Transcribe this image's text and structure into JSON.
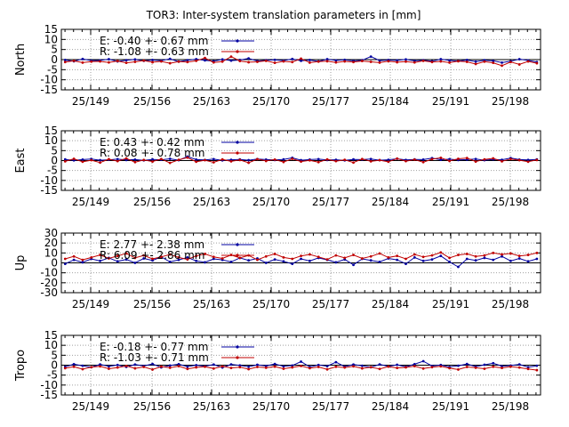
{
  "title": "TOR3: Inter-system translation parameters in [mm]",
  "colors": {
    "E": "#0000a0",
    "R": "#c00000",
    "grid": "#a0a0a0",
    "axis": "#000000"
  },
  "chart_data": [
    {
      "type": "line",
      "ylabel": "North",
      "ylim": [
        -15,
        15
      ],
      "yticks": [
        15,
        10,
        5,
        0,
        -5,
        -10,
        -15
      ],
      "xticks": [
        "25/149",
        "25/156",
        "25/163",
        "25/170",
        "25/177",
        "25/184",
        "25/191",
        "25/198"
      ],
      "series": [
        {
          "name": "E",
          "stat": "E:  -0.40 +- 0.67 mm",
          "values": [
            -0.5,
            -0.2,
            -0.8,
            0.3,
            -0.5,
            -0.4,
            0.2,
            -0.9,
            -0.3,
            0.1,
            -0.6,
            -0.2,
            -0.5,
            0.4,
            -1.0,
            -0.3,
            0.2,
            -0.4,
            -0.8,
            0.1,
            -0.5,
            -0.2,
            0.6,
            -0.7,
            -0.3,
            -0.1,
            -0.5,
            0.3,
            -0.6,
            -0.2,
            -0.9,
            0.2,
            -0.4,
            -0.1,
            -0.6,
            -0.3,
            1.5,
            -0.5,
            -0.2,
            -0.4,
            0.1,
            -0.6,
            -0.3,
            -0.8,
            0.2,
            -0.4,
            -0.7,
            -0.2,
            -1.0,
            -0.3,
            -0.6,
            -1.5,
            -0.8,
            0.2,
            -0.4,
            -1.2
          ]
        },
        {
          "name": "R",
          "stat": "R:  -1.08 +- 0.63 mm",
          "values": [
            -0.8,
            -1.2,
            -0.6,
            -1.5,
            -1.0,
            -0.9,
            -1.4,
            -0.7,
            -1.6,
            -1.1,
            -0.5,
            -1.3,
            -0.9,
            -1.8,
            -1.0,
            -1.2,
            -0.6,
            0.8,
            -1.4,
            -1.0,
            1.5,
            -0.7,
            -1.3,
            -1.1,
            -0.6,
            -1.6,
            -0.9,
            -1.2,
            0.5,
            -1.5,
            -1.0,
            -0.8,
            -1.4,
            -0.9,
            -1.2,
            -0.7,
            -1.1,
            -1.5,
            -0.8,
            -1.3,
            -1.0,
            -1.4,
            -0.6,
            -1.2,
            -0.9,
            -1.5,
            -0.8,
            -1.1,
            -2.2,
            -1.0,
            -1.6,
            -3.0,
            -1.2,
            -2.4,
            -0.9,
            -1.8
          ]
        }
      ]
    },
    {
      "type": "line",
      "ylabel": "East",
      "ylim": [
        -15,
        15
      ],
      "yticks": [
        15,
        10,
        5,
        0,
        -5,
        -10,
        -15
      ],
      "xticks": [
        "25/149",
        "25/156",
        "25/163",
        "25/170",
        "25/177",
        "25/184",
        "25/191",
        "25/198"
      ],
      "series": [
        {
          "name": "E",
          "stat": "E:   0.43 +- 0.42 mm",
          "values": [
            0.3,
            0.6,
            0.1,
            0.5,
            0.8,
            0.2,
            0.4,
            0.7,
            0.3,
            0.5,
            0.1,
            0.6,
            0.4,
            0.9,
            0.2,
            2.0,
            0.5,
            0.3,
            0.7,
            0.1,
            0.4,
            0.6,
            0.2,
            0.8,
            0.5,
            0.3,
            0.6,
            1.4,
            0.2,
            0.5,
            0.7,
            0.3,
            0.4,
            0.1,
            0.6,
            0.5,
            0.8,
            0.2,
            0.4,
            0.9,
            0.3,
            0.6,
            0.5,
            1.2,
            0.4,
            0.7,
            0.3,
            0.5,
            0.8,
            0.2,
            0.6,
            0.4,
            1.3,
            0.5,
            0.3,
            0.6
          ]
        },
        {
          "name": "R",
          "stat": "R:   0.08 +- 0.78 mm",
          "values": [
            0.5,
            -0.4,
            0.9,
            -0.6,
            0.2,
            -1.0,
            0.7,
            -0.3,
            1.1,
            -0.8,
            0.3,
            -0.5,
            0.8,
            -1.2,
            0.4,
            1.5,
            -0.6,
            0.2,
            -0.9,
            0.6,
            -0.4,
            0.3,
            -1.1,
            0.7,
            -0.2,
            0.5,
            -0.7,
            0.9,
            -0.5,
            0.1,
            -0.8,
            0.6,
            -0.3,
            0.4,
            -1.0,
            0.8,
            -0.4,
            0.2,
            -0.6,
            1.0,
            -0.3,
            0.5,
            -0.8,
            0.7,
            1.4,
            -0.2,
            0.9,
            1.3,
            -0.5,
            0.6,
            1.1,
            -0.4,
            0.8,
            0.2,
            -0.6,
            0.3
          ]
        }
      ]
    },
    {
      "type": "line",
      "ylabel": "Up",
      "ylim": [
        -30,
        30
      ],
      "yticks": [
        30,
        20,
        10,
        0,
        -10,
        -20,
        -30
      ],
      "xticks": [
        "25/149",
        "25/156",
        "25/163",
        "25/170",
        "25/177",
        "25/184",
        "25/191",
        "25/198"
      ],
      "series": [
        {
          "name": "E",
          "stat": "E:   2.77 +- 2.38 mm",
          "values": [
            1.0,
            -1.0,
            3.0,
            0.5,
            4.0,
            2.0,
            5.0,
            1.5,
            3.5,
            0.0,
            4.5,
            2.5,
            6.0,
            1.0,
            3.0,
            5.5,
            2.0,
            0.5,
            4.0,
            3.0,
            1.0,
            5.0,
            2.5,
            4.5,
            0.0,
            3.5,
            1.5,
            -1.0,
            4.0,
            2.0,
            5.0,
            3.0,
            0.5,
            3.5,
            -2.0,
            4.0,
            2.5,
            1.0,
            4.5,
            3.0,
            -1.0,
            5.5,
            2.0,
            3.5,
            7.0,
            1.0,
            -4.0,
            4.0,
            2.5,
            5.0,
            3.0,
            6.5,
            2.0,
            4.5,
            1.5,
            4.0
          ]
        },
        {
          "name": "R",
          "stat": "R:   6.09 +- 2.86 mm",
          "values": [
            2.5,
            4.0,
            6.5,
            3.0,
            5.5,
            8.0,
            4.5,
            7.0,
            9.5,
            5.0,
            7.5,
            4.0,
            6.0,
            8.5,
            5.5,
            3.5,
            7.0,
            9.0,
            6.0,
            4.5,
            8.0,
            5.0,
            7.5,
            3.0,
            6.5,
            9.0,
            5.5,
            4.0,
            7.0,
            8.5,
            6.0,
            3.5,
            7.5,
            5.0,
            8.0,
            4.5,
            6.5,
            9.5,
            5.5,
            7.0,
            4.0,
            8.5,
            6.0,
            7.5,
            10.5,
            5.0,
            8.0,
            9.0,
            6.5,
            7.5,
            10.0,
            8.5,
            9.5,
            7.0,
            8.0,
            10.0
          ]
        }
      ]
    },
    {
      "type": "line",
      "ylabel": "Tropo",
      "ylim": [
        -15,
        15
      ],
      "yticks": [
        15,
        10,
        5,
        0,
        -5,
        -10,
        -15
      ],
      "xticks": [
        "25/149",
        "25/156",
        "25/163",
        "25/170",
        "25/177",
        "25/184",
        "25/191",
        "25/198"
      ],
      "series": [
        {
          "name": "E",
          "stat": "E:  -0.18 +- 0.77 mm",
          "values": [
            0.2,
            -0.8,
            0.5,
            -0.3,
            -1.0,
            0.4,
            -0.6,
            0.1,
            -0.9,
            0.3,
            -0.4,
            0.6,
            -1.1,
            -0.2,
            0.5,
            -0.7,
            0.0,
            -0.5,
            0.3,
            -1.2,
            0.4,
            -0.1,
            -0.8,
            0.2,
            -0.4,
            0.6,
            -0.6,
            -0.2,
            1.8,
            -0.9,
            0.1,
            -0.5,
            1.5,
            -0.7,
            0.3,
            -0.3,
            -1.0,
            0.4,
            -0.6,
            0.2,
            -0.8,
            0.5,
            2.0,
            -0.4,
            0.1,
            -0.9,
            -0.3,
            0.6,
            -0.7,
            0.2,
            1.0,
            -0.5,
            -0.2,
            0.4,
            -1.0,
            -0.3
          ]
        },
        {
          "name": "R",
          "stat": "R:  -1.03 +- 0.71 mm",
          "values": [
            -0.5,
            -1.5,
            -0.8,
            -2.0,
            -1.0,
            -0.6,
            -1.8,
            -1.2,
            -0.4,
            -1.6,
            -0.9,
            -2.2,
            -0.7,
            -1.3,
            -0.5,
            -1.9,
            -1.1,
            -0.8,
            -1.7,
            -0.6,
            -1.4,
            -1.0,
            -2.0,
            -0.9,
            -1.3,
            -0.7,
            -1.8,
            -1.1,
            -0.4,
            -1.5,
            -0.9,
            -2.1,
            -0.8,
            -1.2,
            -0.6,
            -1.6,
            -1.0,
            -1.9,
            -0.7,
            -1.4,
            -1.1,
            -0.5,
            -1.7,
            -1.0,
            -0.6,
            -1.5,
            -2.2,
            -0.9,
            -1.3,
            -1.8,
            -0.8,
            -1.4,
            -0.7,
            -1.2,
            -1.9,
            -2.5
          ]
        }
      ]
    }
  ]
}
